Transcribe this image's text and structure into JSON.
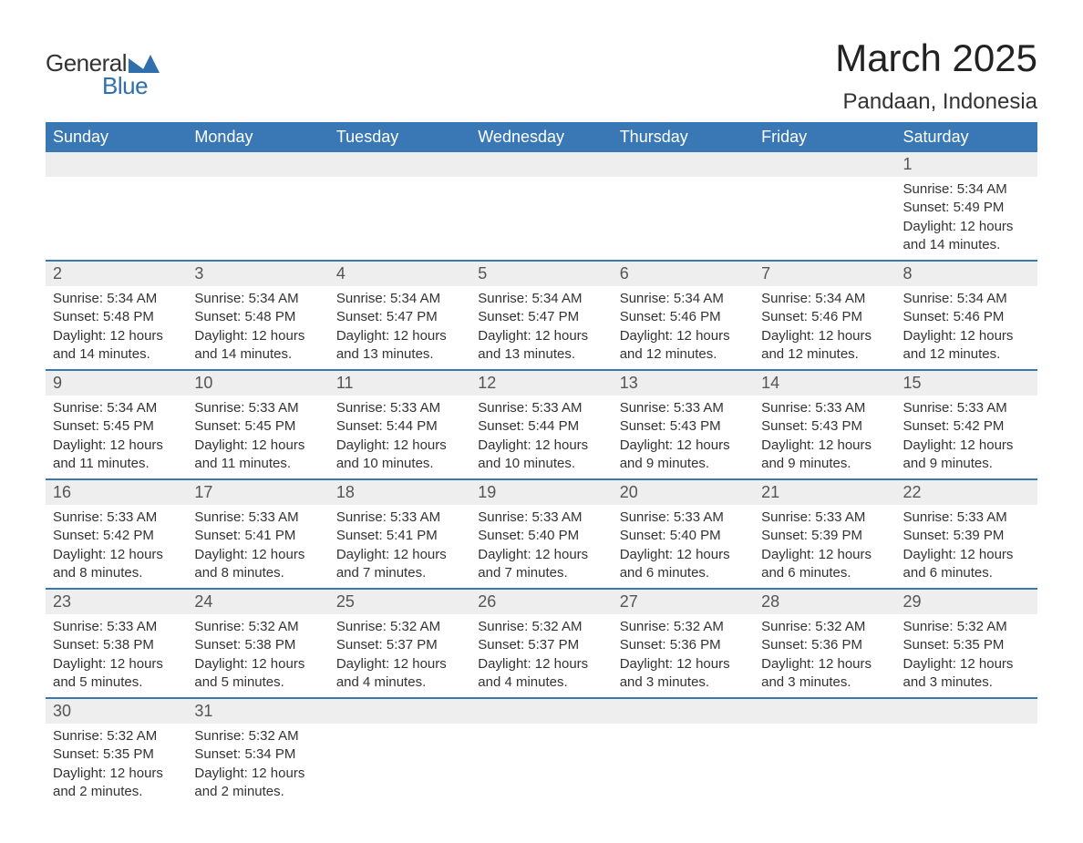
{
  "brand": {
    "general": "General",
    "blue": "Blue",
    "accent_color": "#2f6fab"
  },
  "title": {
    "month": "March 2025",
    "location": "Pandaan, Indonesia"
  },
  "colors": {
    "header_bg": "#3a78b5",
    "header_text": "#ffffff",
    "daynum_bg": "#eeeeee",
    "row_divider": "#3a78b5",
    "body_text": "#333333",
    "page_bg": "#ffffff"
  },
  "typography": {
    "title_fontsize": 42,
    "location_fontsize": 24,
    "header_fontsize": 18,
    "daynum_fontsize": 18,
    "detail_fontsize": 15
  },
  "days_of_week": [
    "Sunday",
    "Monday",
    "Tuesday",
    "Wednesday",
    "Thursday",
    "Friday",
    "Saturday"
  ],
  "labels": {
    "sunrise": "Sunrise:",
    "sunset": "Sunset:",
    "daylight": "Daylight:"
  },
  "weeks": [
    [
      null,
      null,
      null,
      null,
      null,
      null,
      {
        "n": "1",
        "sunrise": "5:34 AM",
        "sunset": "5:49 PM",
        "daylight": "12 hours and 14 minutes."
      }
    ],
    [
      {
        "n": "2",
        "sunrise": "5:34 AM",
        "sunset": "5:48 PM",
        "daylight": "12 hours and 14 minutes."
      },
      {
        "n": "3",
        "sunrise": "5:34 AM",
        "sunset": "5:48 PM",
        "daylight": "12 hours and 14 minutes."
      },
      {
        "n": "4",
        "sunrise": "5:34 AM",
        "sunset": "5:47 PM",
        "daylight": "12 hours and 13 minutes."
      },
      {
        "n": "5",
        "sunrise": "5:34 AM",
        "sunset": "5:47 PM",
        "daylight": "12 hours and 13 minutes."
      },
      {
        "n": "6",
        "sunrise": "5:34 AM",
        "sunset": "5:46 PM",
        "daylight": "12 hours and 12 minutes."
      },
      {
        "n": "7",
        "sunrise": "5:34 AM",
        "sunset": "5:46 PM",
        "daylight": "12 hours and 12 minutes."
      },
      {
        "n": "8",
        "sunrise": "5:34 AM",
        "sunset": "5:46 PM",
        "daylight": "12 hours and 12 minutes."
      }
    ],
    [
      {
        "n": "9",
        "sunrise": "5:34 AM",
        "sunset": "5:45 PM",
        "daylight": "12 hours and 11 minutes."
      },
      {
        "n": "10",
        "sunrise": "5:33 AM",
        "sunset": "5:45 PM",
        "daylight": "12 hours and 11 minutes."
      },
      {
        "n": "11",
        "sunrise": "5:33 AM",
        "sunset": "5:44 PM",
        "daylight": "12 hours and 10 minutes."
      },
      {
        "n": "12",
        "sunrise": "5:33 AM",
        "sunset": "5:44 PM",
        "daylight": "12 hours and 10 minutes."
      },
      {
        "n": "13",
        "sunrise": "5:33 AM",
        "sunset": "5:43 PM",
        "daylight": "12 hours and 9 minutes."
      },
      {
        "n": "14",
        "sunrise": "5:33 AM",
        "sunset": "5:43 PM",
        "daylight": "12 hours and 9 minutes."
      },
      {
        "n": "15",
        "sunrise": "5:33 AM",
        "sunset": "5:42 PM",
        "daylight": "12 hours and 9 minutes."
      }
    ],
    [
      {
        "n": "16",
        "sunrise": "5:33 AM",
        "sunset": "5:42 PM",
        "daylight": "12 hours and 8 minutes."
      },
      {
        "n": "17",
        "sunrise": "5:33 AM",
        "sunset": "5:41 PM",
        "daylight": "12 hours and 8 minutes."
      },
      {
        "n": "18",
        "sunrise": "5:33 AM",
        "sunset": "5:41 PM",
        "daylight": "12 hours and 7 minutes."
      },
      {
        "n": "19",
        "sunrise": "5:33 AM",
        "sunset": "5:40 PM",
        "daylight": "12 hours and 7 minutes."
      },
      {
        "n": "20",
        "sunrise": "5:33 AM",
        "sunset": "5:40 PM",
        "daylight": "12 hours and 6 minutes."
      },
      {
        "n": "21",
        "sunrise": "5:33 AM",
        "sunset": "5:39 PM",
        "daylight": "12 hours and 6 minutes."
      },
      {
        "n": "22",
        "sunrise": "5:33 AM",
        "sunset": "5:39 PM",
        "daylight": "12 hours and 6 minutes."
      }
    ],
    [
      {
        "n": "23",
        "sunrise": "5:33 AM",
        "sunset": "5:38 PM",
        "daylight": "12 hours and 5 minutes."
      },
      {
        "n": "24",
        "sunrise": "5:32 AM",
        "sunset": "5:38 PM",
        "daylight": "12 hours and 5 minutes."
      },
      {
        "n": "25",
        "sunrise": "5:32 AM",
        "sunset": "5:37 PM",
        "daylight": "12 hours and 4 minutes."
      },
      {
        "n": "26",
        "sunrise": "5:32 AM",
        "sunset": "5:37 PM",
        "daylight": "12 hours and 4 minutes."
      },
      {
        "n": "27",
        "sunrise": "5:32 AM",
        "sunset": "5:36 PM",
        "daylight": "12 hours and 3 minutes."
      },
      {
        "n": "28",
        "sunrise": "5:32 AM",
        "sunset": "5:36 PM",
        "daylight": "12 hours and 3 minutes."
      },
      {
        "n": "29",
        "sunrise": "5:32 AM",
        "sunset": "5:35 PM",
        "daylight": "12 hours and 3 minutes."
      }
    ],
    [
      {
        "n": "30",
        "sunrise": "5:32 AM",
        "sunset": "5:35 PM",
        "daylight": "12 hours and 2 minutes."
      },
      {
        "n": "31",
        "sunrise": "5:32 AM",
        "sunset": "5:34 PM",
        "daylight": "12 hours and 2 minutes."
      },
      null,
      null,
      null,
      null,
      null
    ]
  ]
}
